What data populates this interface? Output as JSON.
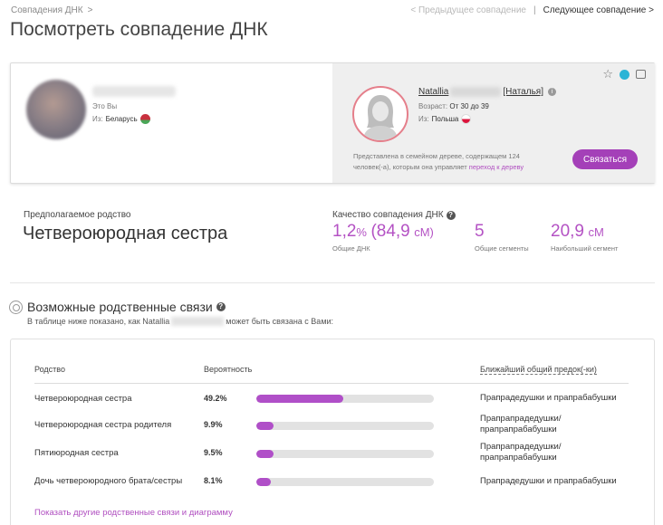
{
  "breadcrumb": {
    "label": "Совпадения ДНК",
    "separator": ">"
  },
  "pager": {
    "prev": "<  Предыдущее совпадение",
    "divider": "|",
    "next": "Следующее совпадение  >"
  },
  "page_title": "Посмотреть совпадение ДНК",
  "me": {
    "you_label": "Это Вы",
    "from_label": "Из:",
    "country": "Беларусь"
  },
  "match": {
    "first_name": "Natallia",
    "alias": "[Наталья]",
    "age_label": "Возраст:",
    "age_value": "От 30 до 39",
    "from_label": "Из:",
    "country": "Польша",
    "tree_text": "Представлена в семейном дереве, содержащем 124 человек(-а), которым она управляет",
    "tree_link": "переход к дереву",
    "contact_button": "Связаться"
  },
  "relationship": {
    "label": "Предполагаемое родство",
    "value": "Четвероюродная сестра"
  },
  "quality": {
    "label": "Качество совпадения ДНК",
    "shared_dna_pct": "1,2",
    "pct_sign": "%",
    "shared_dna_cm": "(84,9",
    "shared_dna_unit": "сМ)",
    "shared_dna_caption": "Общие ДНК",
    "segments": "5",
    "segments_caption": "Общие сегменты",
    "largest_segment": "20,9",
    "largest_segment_unit": "сМ",
    "largest_segment_caption": "Наибольший сегмент"
  },
  "possible_relations": {
    "title": "Возможные родственные связи",
    "subtitle_pre": "В таблице ниже показано, как Natallia",
    "subtitle_post": "может быть связана с Вами:",
    "columns": {
      "relationship": "Родство",
      "probability": "Вероятность",
      "ancestor": "Ближайший общий предок(-ки)"
    },
    "rows": [
      {
        "relationship": "Четвероюродная сестра",
        "probability": "49.2%",
        "fraction": 0.492,
        "ancestor": "Прапрадедушки и прапрабабушки"
      },
      {
        "relationship": "Четвероюродная сестра родителя",
        "probability": "9.9%",
        "fraction": 0.099,
        "ancestor": "Прапрапрадедушки/ прапрапрабабушки"
      },
      {
        "relationship": "Пятиюродная сестра",
        "probability": "9.5%",
        "fraction": 0.095,
        "ancestor": "Прапрапрадедушки/ прапрапрабабушки"
      },
      {
        "relationship": "Дочь четвероюродного брата/сестры",
        "probability": "8.1%",
        "fraction": 0.081,
        "ancestor": "Прапрадедушки и прапрабабушки"
      }
    ],
    "show_more": "Показать другие родственные связи и диаграмму"
  },
  "colors": {
    "accent": "#a440b8",
    "bar": "#b04fc8",
    "stat": "#b452c4"
  }
}
